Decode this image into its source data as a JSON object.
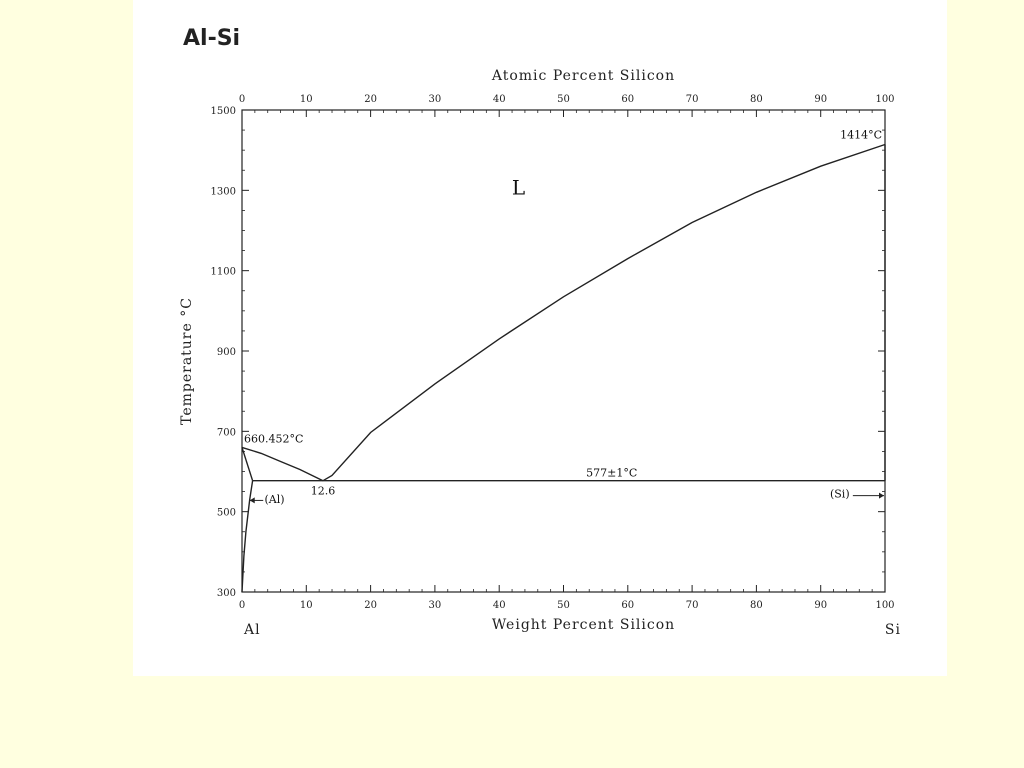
{
  "page": {
    "background": "#ffffe0",
    "panel": "#ffffff"
  },
  "chart_data": {
    "type": "line",
    "title": "Al-Si",
    "xlabel": "Weight Percent Silicon",
    "x2label": "Atomic Percent Silicon",
    "ylabel": "Temperature °C",
    "xlim": [
      0,
      100
    ],
    "ylim": [
      300,
      1500
    ],
    "x_ticks": [
      "0",
      "10",
      "20",
      "30",
      "40",
      "50",
      "60",
      "70",
      "80",
      "90",
      "100"
    ],
    "x2_ticks": [
      "0",
      "10",
      "20",
      "30",
      "40",
      "50",
      "60",
      "70",
      "80",
      "90",
      "100"
    ],
    "y_ticks": [
      "300",
      "500",
      "700",
      "900",
      "1100",
      "1300",
      "1500"
    ],
    "end_labels": {
      "left": "Al",
      "right": "Si"
    },
    "series": [
      {
        "values": [
          [
            0,
            660
          ],
          [
            3,
            645
          ],
          [
            6,
            625
          ],
          [
            9,
            605
          ],
          [
            12.6,
            577
          ]
        ]
      },
      {
        "values": [
          [
            12.6,
            577
          ],
          [
            14,
            590
          ],
          [
            20,
            697
          ],
          [
            30,
            818
          ],
          [
            40,
            930
          ],
          [
            50,
            1035
          ],
          [
            60,
            1130
          ],
          [
            70,
            1220
          ],
          [
            80,
            1295
          ],
          [
            90,
            1360
          ],
          [
            100,
            1414
          ]
        ]
      },
      {
        "values": [
          [
            1.65,
            577
          ],
          [
            100,
            577
          ]
        ]
      },
      {
        "values": [
          [
            0,
            660
          ],
          [
            1.65,
            577
          ]
        ]
      },
      {
        "values": [
          [
            1.65,
            577
          ],
          [
            1.2,
            530
          ],
          [
            0.6,
            450
          ],
          [
            0.3,
            390
          ],
          [
            0,
            300
          ]
        ]
      },
      {
        "values": [
          [
            100,
            577
          ],
          [
            100,
            1414
          ]
        ]
      }
    ],
    "annotations": {
      "al_melting": "660.452°C",
      "si_melting": "1414°C",
      "eutectic_temp": "577±1°C",
      "eutectic_comp": "12.6",
      "liquid": "L",
      "al_phase": "(Al)",
      "si_phase": "(Si)"
    }
  }
}
